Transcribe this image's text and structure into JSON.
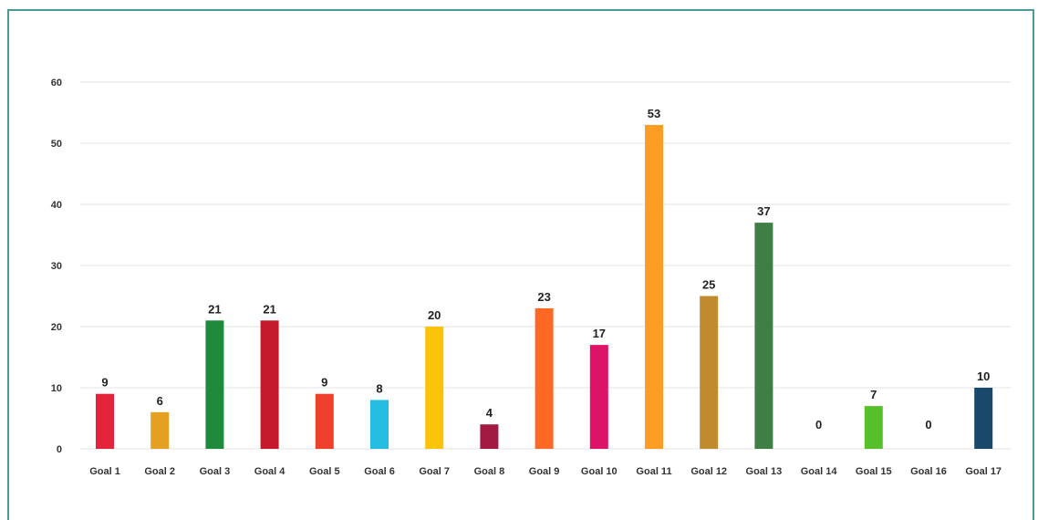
{
  "chart_data": {
    "type": "bar",
    "categories": [
      "Goal 1",
      "Goal 2",
      "Goal 3",
      "Goal 4",
      "Goal 5",
      "Goal 6",
      "Goal 7",
      "Goal 8",
      "Goal 9",
      "Goal 10",
      "Goal 11",
      "Goal 12",
      "Goal 13",
      "Goal 14",
      "Goal 15",
      "Goal 16",
      "Goal 17"
    ],
    "values": [
      9,
      6,
      21,
      21,
      9,
      8,
      20,
      4,
      23,
      17,
      53,
      25,
      37,
      0,
      7,
      0,
      10
    ],
    "colors": [
      "#e5243b",
      "#e5a021",
      "#1f8a3c",
      "#c5192d",
      "#ef402b",
      "#26bde2",
      "#fcc30b",
      "#a21942",
      "#fd6925",
      "#dd1367",
      "#fd9d24",
      "#bf8b2e",
      "#3f7e44",
      "#0a97d9",
      "#56c02b",
      "#00689d",
      "#19486a"
    ],
    "data_labels": [
      "9",
      "6",
      "21",
      "21",
      "9",
      "8",
      "20",
      "4",
      "23",
      "17",
      "53",
      "25",
      "37",
      "0",
      "7",
      "0",
      "10"
    ],
    "yticks": [
      "0",
      "10",
      "20",
      "30",
      "40",
      "50",
      "60"
    ],
    "ylim": [
      0,
      60
    ],
    "grid": true,
    "title": "",
    "xlabel": "",
    "ylabel": ""
  }
}
